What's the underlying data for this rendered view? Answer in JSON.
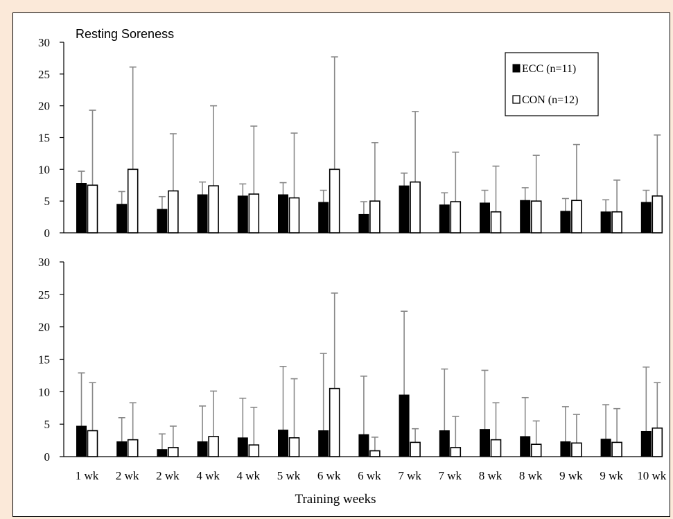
{
  "chart_data": {
    "type": "bar",
    "xlabel": "Training weeks",
    "legend": {
      "placement": "top-right",
      "panel": "top",
      "entries": [
        {
          "name": "ECC (n=11)",
          "fill": "#000000"
        },
        {
          "name": "CON (n=12)",
          "fill": "#ffffff"
        }
      ]
    },
    "categories": [
      "1 wk",
      "2 wk",
      "2 wk",
      "4 wk",
      "4 wk",
      "5 wk",
      "6 wk",
      "6 wk",
      "7 wk",
      "7 wk",
      "8 wk",
      "8 wk",
      "9 wk",
      "9 wk",
      "10 wk"
    ],
    "ylim": [
      0,
      30
    ],
    "yticks": [
      0,
      5,
      10,
      15,
      20,
      25,
      30
    ],
    "panels": [
      {
        "title": "Resting Soreness",
        "series": [
          {
            "name": "ECC (n=11)",
            "values": [
              7.8,
              4.5,
              3.7,
              6.0,
              5.8,
              6.0,
              4.8,
              2.9,
              7.4,
              4.4,
              4.7,
              5.1,
              3.4,
              3.3,
              4.8
            ],
            "errors": [
              1.9,
              2.0,
              2.0,
              2.0,
              1.9,
              1.9,
              1.9,
              2.0,
              2.0,
              1.9,
              2.0,
              2.0,
              2.0,
              1.9,
              1.9
            ]
          },
          {
            "name": "CON (n=12)",
            "values": [
              7.5,
              10.0,
              6.6,
              7.4,
              6.1,
              5.5,
              10.0,
              5.0,
              8.0,
              4.9,
              3.3,
              5.0,
              5.1,
              3.3,
              5.8
            ],
            "errors": [
              11.8,
              16.1,
              9.0,
              12.6,
              10.7,
              10.2,
              17.7,
              9.2,
              11.1,
              7.8,
              7.2,
              7.2,
              8.8,
              5.0,
              9.6
            ]
          }
        ]
      },
      {
        "title": "",
        "series": [
          {
            "name": "ECC (n=11)",
            "values": [
              4.7,
              2.3,
              1.1,
              2.3,
              2.9,
              4.1,
              4.0,
              3.4,
              9.5,
              4.0,
              4.2,
              3.1,
              2.3,
              2.7,
              3.9
            ],
            "errors": [
              8.2,
              3.7,
              2.4,
              5.5,
              6.1,
              9.8,
              11.9,
              9.0,
              12.9,
              9.5,
              9.1,
              6.0,
              5.4,
              5.3,
              9.9
            ]
          },
          {
            "name": "CON (n=12)",
            "values": [
              4.0,
              2.6,
              1.4,
              3.1,
              1.8,
              2.9,
              10.5,
              0.9,
              2.2,
              1.4,
              2.6,
              1.9,
              2.1,
              2.2,
              4.4
            ],
            "errors": [
              7.4,
              5.7,
              3.3,
              7.0,
              5.8,
              9.1,
              14.7,
              2.1,
              2.1,
              4.8,
              5.7,
              3.6,
              4.4,
              5.2,
              7.0
            ]
          }
        ]
      }
    ]
  }
}
